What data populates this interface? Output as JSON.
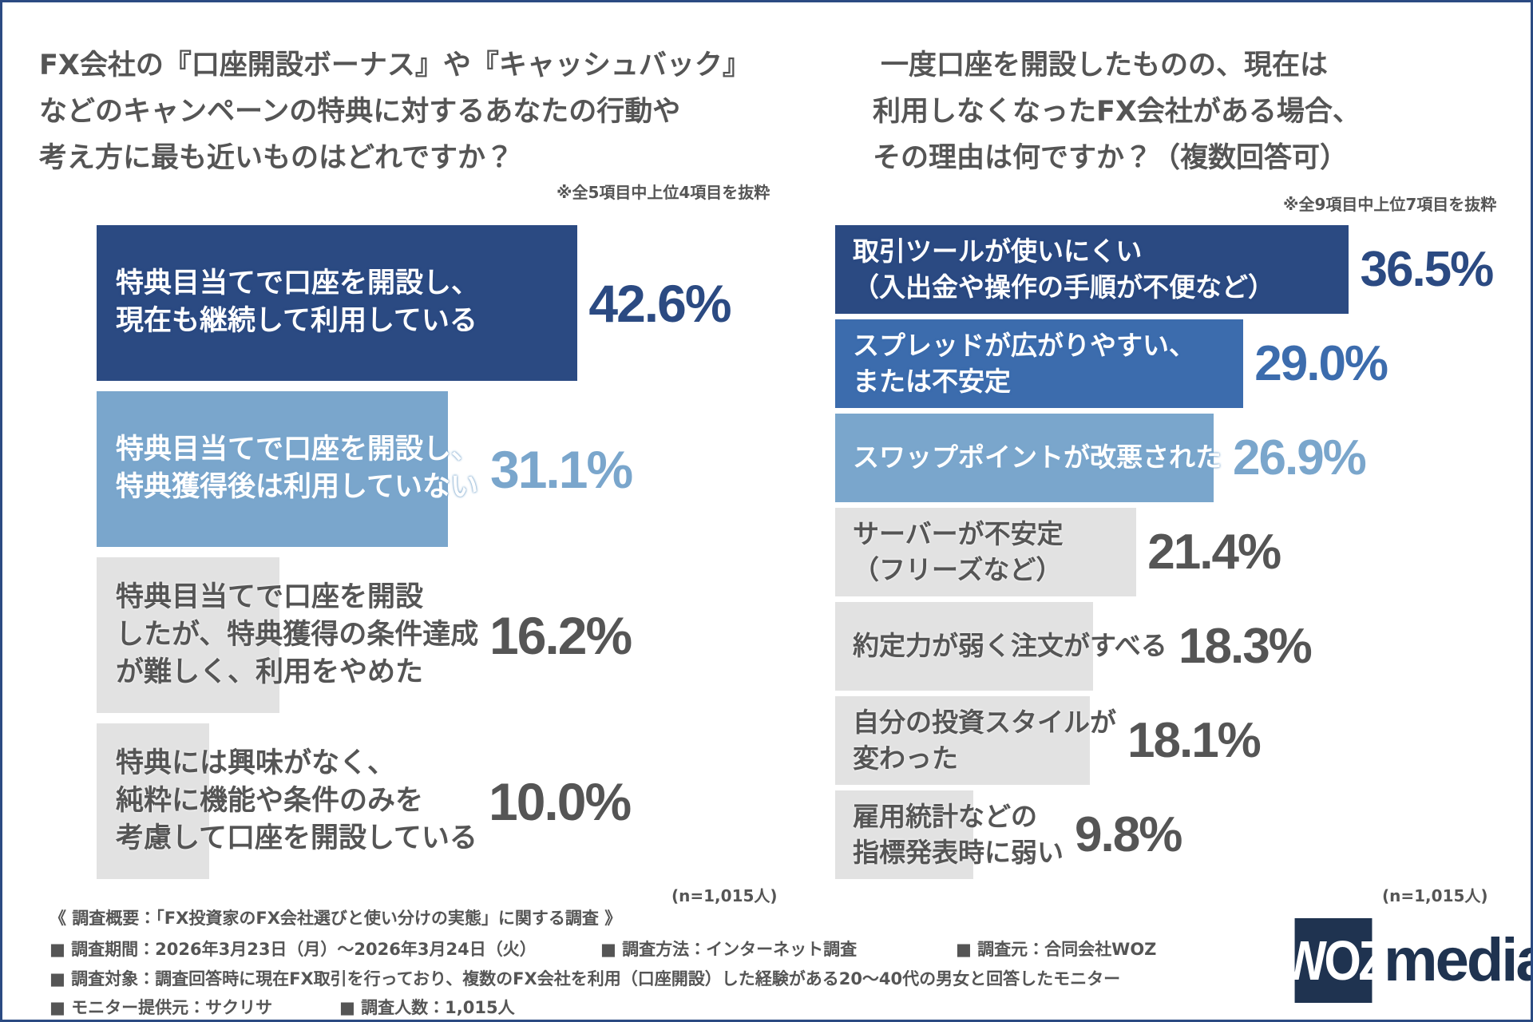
{
  "chart_data": [
    {
      "type": "bar",
      "orientation": "horizontal",
      "title": [
        "FX会社の『口座開設ボーナス』や『キャッシュバック』",
        "などのキャンペーンの特典に対するあなたの行動や",
        "考え方に最も近いものはどれですか？"
      ],
      "note": "※全5項目中上位4項目を抜粋",
      "categories": [
        "特典目当てで口座を開設し、\n現在も継続して利用している",
        "特典目当てで口座を開設し、\n特典獲得後は利用していない",
        "特典目当てで口座を開設\nしたが、特典獲得の条件達成\nが難しく、利用をやめた",
        "特典には興味がなく、\n純粋に機能や条件のみを\n考慮して口座を開設している"
      ],
      "values": [
        42.6,
        31.1,
        16.2,
        10.0
      ],
      "value_labels": [
        "42.6%",
        "31.1%",
        "16.2%",
        "10.0%"
      ],
      "colors": [
        "#2b4a82",
        "#7aa6cc",
        "#e2e2e2",
        "#e2e2e2"
      ],
      "text_colors": [
        "#ffffff",
        "#ffffff",
        "#555555",
        "#555555"
      ],
      "value_label_colors": [
        "#2b4a82",
        "#7aa6cc",
        "#555555",
        "#555555"
      ],
      "sample": "(n=1,015人)"
    },
    {
      "type": "bar",
      "orientation": "horizontal",
      "title": [
        "一度口座を開設したものの、現在は",
        "利用しなくなったFX会社がある場合、",
        "その理由は何ですか？（複数回答可）"
      ],
      "note": "※全9項目中上位7項目を抜粋",
      "categories": [
        "取引ツールが使いにくい\n（入出金や操作の手順が不便など）",
        "スプレッドが広がりやすい、\nまたは不安定",
        "スワップポイントが改悪された",
        "サーバーが不安定\n（フリーズなど）",
        "約定力が弱く注文がすべる",
        "自分の投資スタイルが\n変わった",
        "雇用統計などの\n指標発表時に弱い"
      ],
      "values": [
        36.5,
        29.0,
        26.9,
        21.4,
        18.3,
        18.1,
        9.8
      ],
      "value_labels": [
        "36.5%",
        "29.0%",
        "26.9%",
        "21.4%",
        "18.3%",
        "18.1%",
        "9.8%"
      ],
      "colors": [
        "#2b4a82",
        "#3c6cad",
        "#7aa6cc",
        "#e2e2e2",
        "#e2e2e2",
        "#e2e2e2",
        "#e2e2e2"
      ],
      "text_colors": [
        "#ffffff",
        "#ffffff",
        "#ffffff",
        "#555555",
        "#555555",
        "#555555",
        "#555555"
      ],
      "value_label_colors": [
        "#2b4a82",
        "#3c6cad",
        "#7aa6cc",
        "#555555",
        "#555555",
        "#555555",
        "#555555"
      ],
      "sample": "(n=1,015人)"
    }
  ],
  "footer": {
    "heading": "《 調査概要：「FX投資家のFX会社選びと使い分けの実態」に関する調査 》",
    "items": [
      [
        "■ 調査期間：2026年3月23日（月）～2026年3月24日（火）",
        "■ 調査方法：インターネット調査",
        "■ 調査元：合同会社WOZ"
      ],
      [
        "■ 調査対象：調査回答時に現在FX取引を行っており、複数のFX会社を利用（口座開設）した経験がある20～40代の男女と回答したモニター"
      ],
      [
        "■ モニター提供元：サクリサ",
        "■ 調査人数：1,015人"
      ]
    ]
  },
  "logo": {
    "mark": "WOZ",
    "text": "media"
  }
}
